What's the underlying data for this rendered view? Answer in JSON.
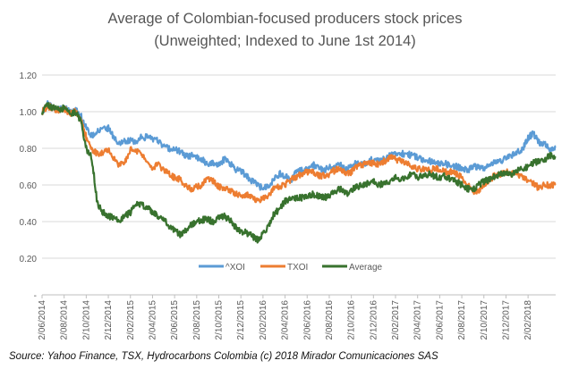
{
  "chart_data": {
    "type": "line",
    "title": "Average of  Colombian-focused producers stock prices",
    "subtitle": "(Unweighted; Indexed to June 1st 2014)",
    "xlabel": "",
    "ylabel": "",
    "ylim": [
      0,
      1.2
    ],
    "yticks": [
      "-",
      "0.20",
      "0.40",
      "0.60",
      "0.80",
      "1.00",
      "1.20"
    ],
    "ytick_values": [
      0,
      0.2,
      0.4,
      0.6,
      0.8,
      1.0,
      1.2
    ],
    "x_tick_labels": [
      "2/06/2014",
      "2/08/2014",
      "2/10/2014",
      "2/12/2014",
      "2/02/2015",
      "2/04/2015",
      "2/06/2015",
      "2/08/2015",
      "2/10/2015",
      "2/12/2015",
      "2/02/2016",
      "2/04/2016",
      "2/06/2016",
      "2/08/2016",
      "2/10/2016",
      "2/12/2016",
      "2/02/2017",
      "2/04/2017",
      "2/06/2017",
      "2/08/2017",
      "2/10/2017",
      "2/12/2017",
      "2/02/2018"
    ],
    "x_months": [
      0,
      0.5,
      1,
      1.5,
      2,
      2.5,
      3,
      3.5,
      4,
      4.5,
      5,
      5.5,
      6,
      6.5,
      7,
      7.5,
      8,
      8.5,
      9,
      9.5,
      10,
      10.5,
      11,
      11.5,
      12,
      12.5,
      13,
      13.5,
      14,
      14.5,
      15,
      15.5,
      16,
      16.5,
      17,
      17.5,
      18,
      18.5,
      19,
      19.5,
      20,
      20.5,
      21,
      21.5,
      22,
      22.5,
      23,
      23.5,
      24,
      24.5,
      25,
      25.5,
      26,
      26.5,
      27,
      27.5,
      28,
      28.5,
      29,
      29.5,
      30,
      30.5,
      31,
      31.5,
      32,
      32.5,
      33,
      33.5,
      34,
      34.5,
      35,
      35.5,
      36,
      36.5,
      37,
      37.5,
      38,
      38.5,
      39,
      39.5,
      40,
      40.5,
      41,
      41.5,
      42,
      42.5,
      43,
      43.5,
      44,
      44.5,
      45,
      45.5,
      46,
      46.5
    ],
    "x_max": 46.5,
    "series": [
      {
        "name": "^XOI",
        "color": "#5B9BD5",
        "values": [
          1.0,
          1.04,
          1.03,
          1.01,
          1.02,
          1.0,
          1.01,
          0.98,
          0.91,
          0.87,
          0.89,
          0.9,
          0.91,
          0.86,
          0.83,
          0.84,
          0.84,
          0.84,
          0.86,
          0.86,
          0.85,
          0.84,
          0.81,
          0.8,
          0.8,
          0.78,
          0.76,
          0.76,
          0.75,
          0.74,
          0.71,
          0.72,
          0.71,
          0.74,
          0.72,
          0.68,
          0.68,
          0.65,
          0.62,
          0.6,
          0.58,
          0.6,
          0.63,
          0.66,
          0.65,
          0.62,
          0.67,
          0.68,
          0.69,
          0.71,
          0.7,
          0.68,
          0.7,
          0.7,
          0.71,
          0.68,
          0.7,
          0.72,
          0.71,
          0.73,
          0.74,
          0.73,
          0.74,
          0.76,
          0.77,
          0.77,
          0.77,
          0.76,
          0.75,
          0.74,
          0.73,
          0.73,
          0.72,
          0.72,
          0.7,
          0.7,
          0.69,
          0.68,
          0.7,
          0.7,
          0.69,
          0.71,
          0.72,
          0.73,
          0.75,
          0.76,
          0.78,
          0.79,
          0.86,
          0.88,
          0.83,
          0.82,
          0.8,
          0.81
        ]
      },
      {
        "name": "TXOI",
        "color": "#ED7D31",
        "values": [
          1.0,
          1.03,
          1.02,
          1.0,
          1.02,
          0.99,
          1.0,
          0.96,
          0.86,
          0.79,
          0.77,
          0.78,
          0.79,
          0.74,
          0.71,
          0.72,
          0.79,
          0.79,
          0.77,
          0.72,
          0.69,
          0.72,
          0.68,
          0.66,
          0.64,
          0.63,
          0.6,
          0.58,
          0.59,
          0.6,
          0.64,
          0.62,
          0.59,
          0.58,
          0.57,
          0.55,
          0.54,
          0.55,
          0.53,
          0.51,
          0.53,
          0.54,
          0.58,
          0.59,
          0.6,
          0.63,
          0.64,
          0.66,
          0.67,
          0.67,
          0.65,
          0.65,
          0.66,
          0.68,
          0.69,
          0.66,
          0.67,
          0.7,
          0.71,
          0.72,
          0.72,
          0.71,
          0.73,
          0.75,
          0.74,
          0.73,
          0.72,
          0.7,
          0.69,
          0.69,
          0.68,
          0.69,
          0.69,
          0.67,
          0.67,
          0.66,
          0.64,
          0.6,
          0.57,
          0.56,
          0.6,
          0.63,
          0.65,
          0.66,
          0.67,
          0.66,
          0.66,
          0.64,
          0.63,
          0.61,
          0.58,
          0.6,
          0.6,
          0.6
        ]
      },
      {
        "name": "Average",
        "color": "#38722E",
        "values": [
          1.0,
          1.04,
          1.02,
          1.01,
          1.02,
          0.99,
          1.0,
          0.95,
          0.8,
          0.75,
          0.5,
          0.45,
          0.43,
          0.42,
          0.4,
          0.43,
          0.45,
          0.5,
          0.49,
          0.48,
          0.45,
          0.43,
          0.42,
          0.37,
          0.35,
          0.33,
          0.35,
          0.38,
          0.4,
          0.41,
          0.41,
          0.4,
          0.42,
          0.43,
          0.41,
          0.37,
          0.34,
          0.34,
          0.32,
          0.3,
          0.33,
          0.38,
          0.44,
          0.47,
          0.51,
          0.52,
          0.53,
          0.53,
          0.54,
          0.55,
          0.54,
          0.53,
          0.54,
          0.56,
          0.58,
          0.55,
          0.57,
          0.59,
          0.6,
          0.61,
          0.62,
          0.6,
          0.61,
          0.62,
          0.64,
          0.63,
          0.64,
          0.66,
          0.64,
          0.65,
          0.66,
          0.65,
          0.64,
          0.65,
          0.63,
          0.62,
          0.6,
          0.58,
          0.57,
          0.6,
          0.62,
          0.63,
          0.65,
          0.66,
          0.67,
          0.66,
          0.68,
          0.69,
          0.7,
          0.72,
          0.73,
          0.74,
          0.76,
          0.75
        ]
      }
    ],
    "legend_position": "bottom-center",
    "grid": true
  },
  "source_text": "Source: Yahoo Finance, TSX, Hydrocarbons Colombia (c) 2018 Mirador Comunicaciones SAS"
}
